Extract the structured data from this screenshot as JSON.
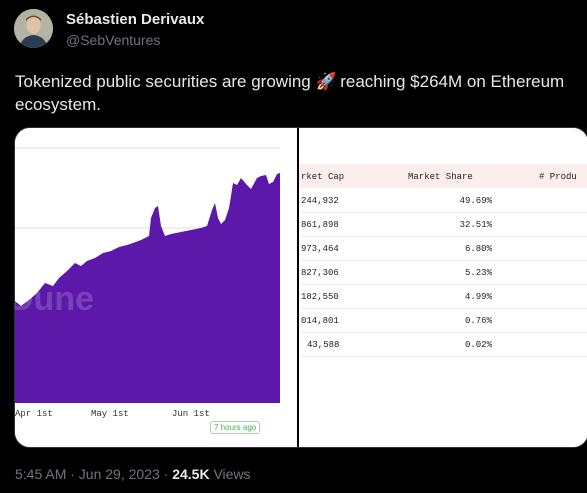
{
  "author": {
    "name": "Sébastien Derivaux",
    "handle": "@SebVentures"
  },
  "tweet": {
    "text_before": "Tokenized public securities are growing",
    "emoji": "🚀",
    "text_after": " reaching $264M on Ethereum ecosystem."
  },
  "chart": {
    "watermark": "Dune",
    "badge": "7 hours ago",
    "colors": {
      "area": "#5c18a8",
      "grid": "#dddddd"
    },
    "chart_data": {
      "type": "area",
      "x_ticks": [
        "Apr 1st",
        "May 1st",
        "Jun 1st"
      ],
      "title": "",
      "xlabel": "",
      "ylabel": "",
      "grid": true,
      "legend": "none"
    }
  },
  "table": {
    "headers": [
      "rket Cap",
      "Market Share",
      "# Produ"
    ],
    "rows": [
      {
        "cap": "244,932",
        "share": "49.69%"
      },
      {
        "cap": "861,898",
        "share": "32.51%"
      },
      {
        "cap": "973,464",
        "share": "6.80%"
      },
      {
        "cap": "827,306",
        "share": "5.23%"
      },
      {
        "cap": "182,550",
        "share": "4.99%"
      },
      {
        "cap": "014,801",
        "share": "0.76%"
      },
      {
        "cap": "43,588",
        "share": "0.02%"
      }
    ]
  },
  "footer": {
    "time": "5:45 AM · Jun 29, 2023 · ",
    "views_count": "24.5K",
    "views_label": " Views"
  }
}
